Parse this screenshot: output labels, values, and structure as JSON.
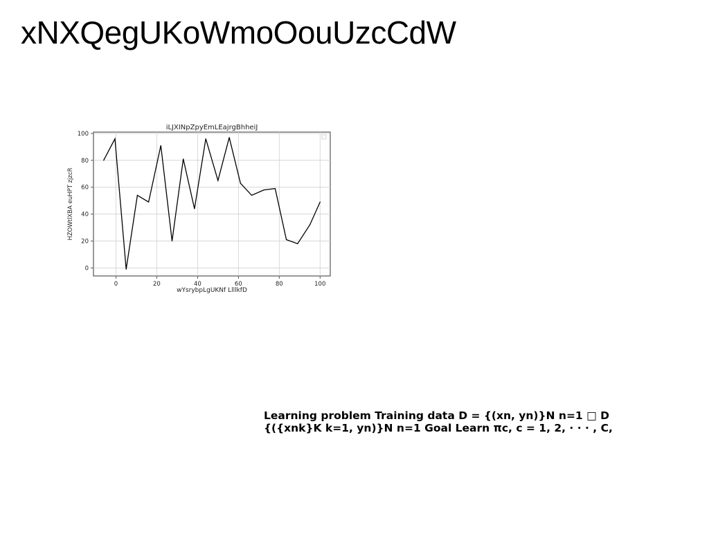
{
  "slide": {
    "title": "xNXQegUKoWmoOouUzcCdW",
    "body_text": "Learning problem Training data D = {(xn, yn)}N n=1 □ D {({xnk}K k=1, yn)}N n=1 Goal Learn πc, c = 1, 2, · · · , C,"
  },
  "chart_data": {
    "type": "line",
    "title": "iLJXINpZpyEmLEajrgBhheiJ",
    "xlabel": "wYsrybpLgUKNf LlllkfD",
    "ylabel": "HZOWtlXBA euHPT zjzcR",
    "xlim": [
      -11,
      105
    ],
    "ylim": [
      -6,
      101
    ],
    "xticks": [
      0,
      20,
      40,
      60,
      80,
      100
    ],
    "yticks": [
      0,
      20,
      40,
      60,
      80,
      100
    ],
    "grid": true,
    "legend": "top-right",
    "color": "#000000",
    "series": [
      {
        "x": [
          -6,
          -0.5,
          5,
          10.5,
          16,
          22,
          27.5,
          33,
          38.5,
          44,
          50,
          55.5,
          61,
          66.5,
          72.5,
          78,
          83.5,
          89,
          95,
          100
        ],
        "y": [
          80,
          96,
          -1,
          54,
          49,
          91,
          20,
          81,
          44,
          96,
          65,
          97,
          63,
          54,
          58,
          59,
          21,
          18,
          32,
          49
        ]
      }
    ]
  }
}
